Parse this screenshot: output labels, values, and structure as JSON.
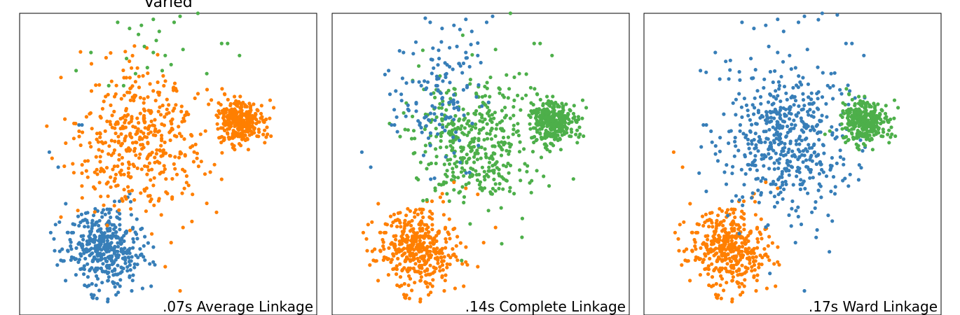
{
  "row_title": "Varied",
  "colors": {
    "blue": "#377eb8",
    "orange": "#ff7f00",
    "green": "#4daf4a"
  },
  "chart_data": [
    {
      "type": "scatter",
      "timing_label": ".07s Average Linkage",
      "grid": false,
      "clusters": [
        {
          "color": "blue",
          "shape": "blob",
          "center": [
            0.29,
            0.78
          ],
          "spread": [
            0.065,
            0.065
          ],
          "count": 420
        },
        {
          "color": "orange",
          "shape": "blob",
          "center": [
            0.41,
            0.42
          ],
          "spread": [
            0.11,
            0.12
          ],
          "count": 430
        },
        {
          "color": "orange",
          "shape": "blob",
          "center": [
            0.745,
            0.36
          ],
          "spread": [
            0.038,
            0.038
          ],
          "count": 320
        },
        {
          "color": "orange",
          "shape": "points",
          "points": [
            [
              0.54,
              0.92
            ],
            [
              0.49,
              0.84
            ],
            [
              0.51,
              0.76
            ],
            [
              0.55,
              0.71
            ],
            [
              0.58,
              0.69
            ],
            [
              0.63,
              0.63
            ],
            [
              0.68,
              0.55
            ],
            [
              0.21,
              0.53
            ],
            [
              0.22,
              0.49
            ]
          ]
        },
        {
          "color": "green",
          "shape": "points",
          "points": [
            [
              0.33,
              0.03
            ],
            [
              0.37,
              0.05
            ],
            [
              0.41,
              0.04
            ],
            [
              0.45,
              0.02
            ],
            [
              0.47,
              0.06
            ],
            [
              0.52,
              0.03
            ],
            [
              0.54,
              0.01
            ],
            [
              0.6,
              0.0
            ],
            [
              0.42,
              0.11
            ],
            [
              0.45,
              0.13
            ],
            [
              0.49,
              0.14
            ],
            [
              0.43,
              0.18
            ],
            [
              0.48,
              0.19
            ],
            [
              0.51,
              0.17
            ],
            [
              0.36,
              0.15
            ],
            [
              0.39,
              0.2
            ],
            [
              0.55,
              0.12
            ],
            [
              0.24,
              0.13
            ],
            [
              0.19,
              0.19
            ],
            [
              0.3,
              0.24
            ],
            [
              0.35,
              0.24
            ],
            [
              0.63,
              0.2
            ],
            [
              0.68,
              0.1
            ],
            [
              0.7,
              0.1
            ],
            [
              0.74,
              0.14
            ],
            [
              0.46,
              0.09
            ],
            [
              0.4,
              0.07
            ]
          ]
        },
        {
          "color": "blue",
          "shape": "points",
          "points": [
            [
              0.1,
              0.46
            ],
            [
              0.13,
              0.51
            ],
            [
              0.2,
              0.37
            ],
            [
              0.21,
              0.37
            ]
          ]
        }
      ]
    },
    {
      "type": "scatter",
      "timing_label": ".14s Complete Linkage",
      "grid": false,
      "clusters": [
        {
          "color": "orange",
          "shape": "blob",
          "center": [
            0.29,
            0.78
          ],
          "spread": [
            0.065,
            0.065
          ],
          "count": 420
        },
        {
          "color": "green",
          "shape": "blob",
          "center": [
            0.47,
            0.43
          ],
          "spread": [
            0.1,
            0.11
          ],
          "count": 420
        },
        {
          "color": "green",
          "shape": "blob",
          "center": [
            0.745,
            0.36
          ],
          "spread": [
            0.038,
            0.038
          ],
          "count": 320
        },
        {
          "color": "blue",
          "shape": "blob",
          "center": [
            0.36,
            0.28
          ],
          "spread": [
            0.07,
            0.1
          ],
          "count": 130
        },
        {
          "color": "blue",
          "shape": "points",
          "points": [
            [
              0.33,
              0.03
            ],
            [
              0.37,
              0.05
            ],
            [
              0.41,
              0.04
            ],
            [
              0.45,
              0.02
            ],
            [
              0.47,
              0.06
            ],
            [
              0.52,
              0.03
            ],
            [
              0.54,
              0.01
            ],
            [
              0.42,
              0.11
            ],
            [
              0.45,
              0.13
            ],
            [
              0.49,
              0.14
            ],
            [
              0.36,
              0.15
            ],
            [
              0.24,
              0.13
            ],
            [
              0.19,
              0.19
            ],
            [
              0.1,
              0.46
            ],
            [
              0.13,
              0.51
            ],
            [
              0.2,
              0.37
            ],
            [
              0.21,
              0.37
            ],
            [
              0.3,
              0.24
            ],
            [
              0.35,
              0.24
            ]
          ]
        },
        {
          "color": "green",
          "shape": "points",
          "points": [
            [
              0.6,
              0.0
            ],
            [
              0.55,
              0.12
            ],
            [
              0.63,
              0.2
            ],
            [
              0.68,
              0.1
            ],
            [
              0.7,
              0.1
            ],
            [
              0.74,
              0.14
            ],
            [
              0.64,
              0.68
            ]
          ]
        },
        {
          "color": "orange",
          "shape": "points",
          "points": [
            [
              0.49,
              0.84
            ],
            [
              0.51,
              0.76
            ],
            [
              0.55,
              0.71
            ],
            [
              0.45,
              0.58
            ],
            [
              0.49,
              0.6
            ],
            [
              0.41,
              0.56
            ]
          ]
        }
      ]
    },
    {
      "type": "scatter",
      "timing_label": ".17s Ward Linkage",
      "grid": false,
      "clusters": [
        {
          "color": "orange",
          "shape": "blob",
          "center": [
            0.29,
            0.78
          ],
          "spread": [
            0.065,
            0.065
          ],
          "count": 420
        },
        {
          "color": "blue",
          "shape": "blob",
          "center": [
            0.47,
            0.42
          ],
          "spread": [
            0.11,
            0.12
          ],
          "count": 520
        },
        {
          "color": "green",
          "shape": "blob",
          "center": [
            0.745,
            0.36
          ],
          "spread": [
            0.038,
            0.038
          ],
          "count": 320
        },
        {
          "color": "blue",
          "shape": "points",
          "points": [
            [
              0.33,
              0.03
            ],
            [
              0.37,
              0.05
            ],
            [
              0.41,
              0.04
            ],
            [
              0.45,
              0.02
            ],
            [
              0.47,
              0.06
            ],
            [
              0.52,
              0.03
            ],
            [
              0.54,
              0.01
            ],
            [
              0.6,
              0.0
            ],
            [
              0.42,
              0.11
            ],
            [
              0.45,
              0.13
            ],
            [
              0.49,
              0.14
            ],
            [
              0.36,
              0.15
            ],
            [
              0.24,
              0.13
            ],
            [
              0.19,
              0.19
            ],
            [
              0.55,
              0.12
            ],
            [
              0.63,
              0.2
            ],
            [
              0.68,
              0.1
            ],
            [
              0.7,
              0.1
            ],
            [
              0.74,
              0.14
            ],
            [
              0.2,
              0.37
            ],
            [
              0.21,
              0.37
            ],
            [
              0.54,
              0.92
            ],
            [
              0.51,
              0.76
            ]
          ]
        },
        {
          "color": "orange",
          "shape": "points",
          "points": [
            [
              0.1,
              0.46
            ],
            [
              0.13,
              0.51
            ],
            [
              0.45,
              0.58
            ],
            [
              0.41,
              0.56
            ]
          ]
        }
      ]
    }
  ]
}
